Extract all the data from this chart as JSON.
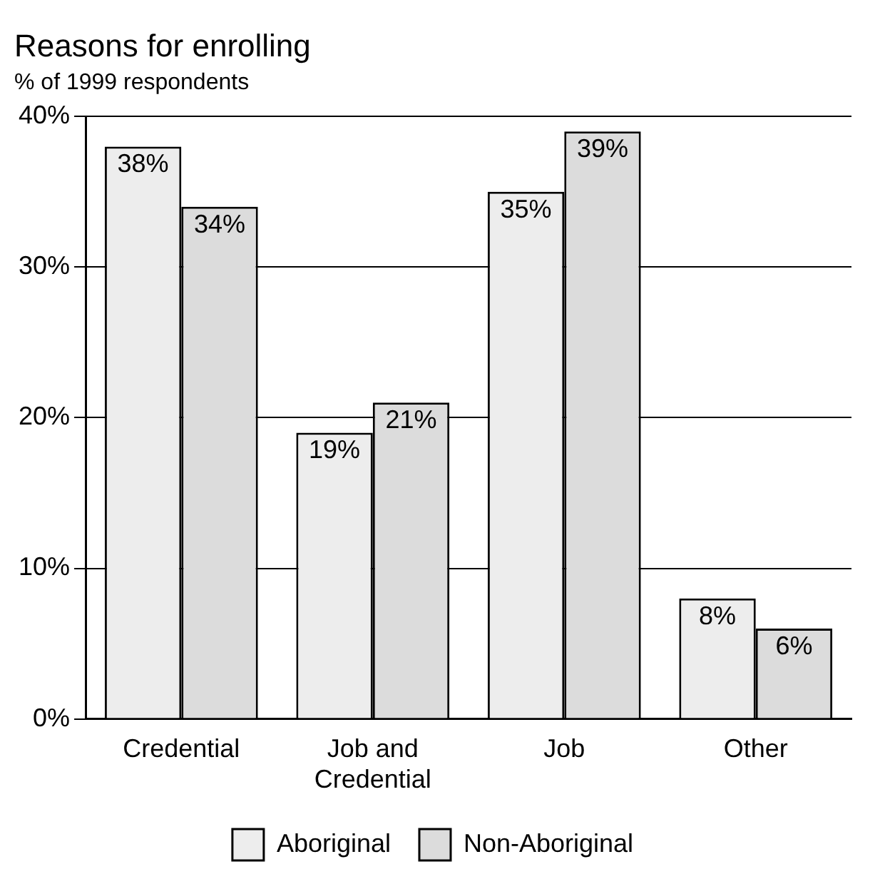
{
  "chart_data": {
    "type": "bar",
    "title": "Reasons for enrolling",
    "subtitle": "% of 1999 respondents",
    "categories": [
      "Credential",
      "Job and\nCredential",
      "Job",
      "Other"
    ],
    "series": [
      {
        "name": "Aboriginal",
        "color": "#ededed",
        "values": [
          38,
          19,
          35,
          8
        ],
        "value_labels": [
          "38%",
          "19%",
          "35%",
          "8%"
        ]
      },
      {
        "name": "Non-Aboriginal",
        "color": "#dcdcdc",
        "values": [
          34,
          21,
          39,
          6
        ],
        "value_labels": [
          "34%",
          "21%",
          "39%",
          "6%"
        ]
      }
    ],
    "ylim": [
      0,
      40
    ],
    "yticks": [
      {
        "value": 0,
        "label": "0%"
      },
      {
        "value": 10,
        "label": "10%"
      },
      {
        "value": 20,
        "label": "20%"
      },
      {
        "value": 30,
        "label": "30%"
      },
      {
        "value": 40,
        "label": "40%"
      }
    ],
    "grid": "y",
    "legend": "bottom"
  }
}
